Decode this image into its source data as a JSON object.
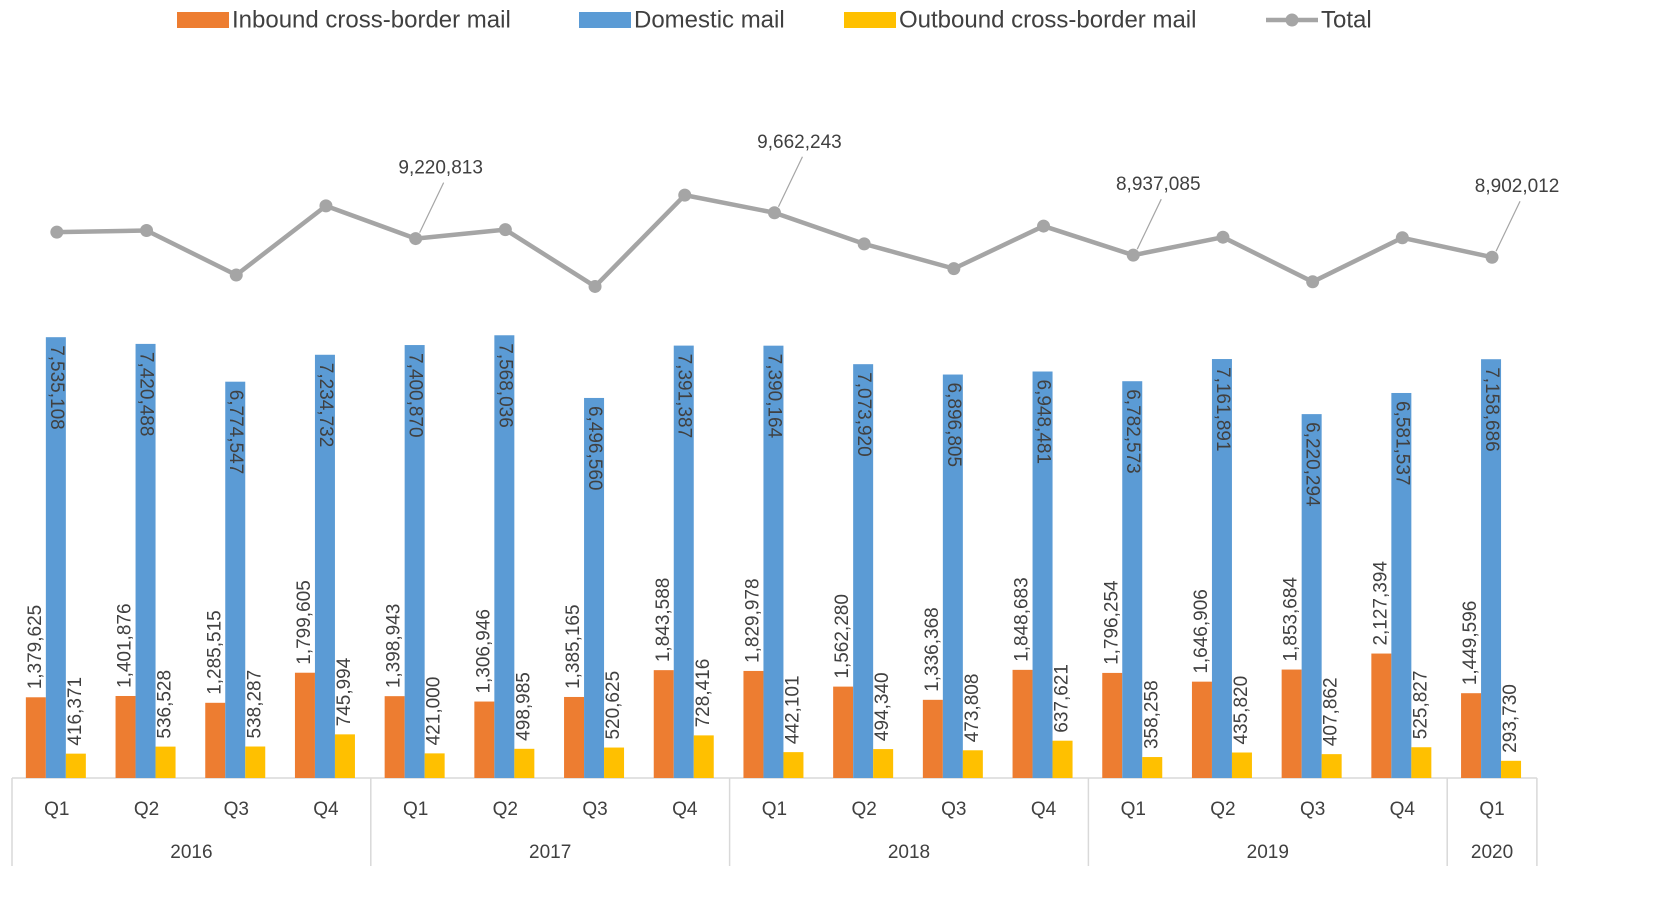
{
  "chart_data": {
    "type": "bar",
    "category_groups": [
      {
        "label": "2016",
        "categories": [
          "Q1",
          "Q2",
          "Q3",
          "Q4"
        ]
      },
      {
        "label": "2017",
        "categories": [
          "Q1",
          "Q2",
          "Q3",
          "Q4"
        ]
      },
      {
        "label": "2018",
        "categories": [
          "Q1",
          "Q2",
          "Q3",
          "Q4"
        ]
      },
      {
        "label": "2019",
        "categories": [
          "Q1",
          "Q2",
          "Q3",
          "Q4"
        ]
      },
      {
        "label": "2020",
        "categories": [
          "Q1"
        ]
      }
    ],
    "ylim": [
      0,
      12000000
    ],
    "series": [
      {
        "name": "Inbound cross-border mail",
        "type": "bar",
        "color": "#ed7d31",
        "values": [
          1379625,
          1401876,
          1285515,
          1799605,
          1398943,
          1306946,
          1385165,
          1843588,
          1829978,
          1562280,
          1336368,
          1848683,
          1796254,
          1646906,
          1853684,
          2127394,
          1449596
        ],
        "value_labels": [
          "1,379,625",
          "1,401,876",
          "1,285,515",
          "1,799,605",
          "1,398,943",
          "1,306,946",
          "1,385,165",
          "1,843,588",
          "1,829,978",
          "1,562,280",
          "1,336,368",
          "1,848,683",
          "1,796,254",
          "1,646,906",
          "1,853,684",
          "2,127,394",
          "1,449,596"
        ]
      },
      {
        "name": "Domestic mail",
        "type": "bar",
        "color": "#5b9bd5",
        "values": [
          7535108,
          7420488,
          6774547,
          7234732,
          7400870,
          7568036,
          6496560,
          7391387,
          7390164,
          7073920,
          6896805,
          6948481,
          6782573,
          7161891,
          6220294,
          6581537,
          7158686
        ],
        "value_labels": [
          "7,535,108",
          "7,420,488",
          "6,774,547",
          "7,234,732",
          "7,400,870",
          "7,568,036",
          "6,496,560",
          "7,391,387",
          "7,390,164",
          "7,073,920",
          "6,896,805",
          "6,948,481",
          "6,782,573",
          "7,161,891",
          "6,220,294",
          "6,581,537",
          "7,158,686"
        ]
      },
      {
        "name": "Outbound cross-border mail",
        "type": "bar",
        "color": "#ffc000",
        "values": [
          416371,
          536528,
          538287,
          745994,
          421000,
          498985,
          520625,
          728416,
          442101,
          494340,
          473808,
          637621,
          358258,
          435820,
          407862,
          525827,
          293730
        ],
        "value_labels": [
          "416,371",
          "536,528",
          "538,287",
          "745,994",
          "421,000",
          "498,985",
          "520,625",
          "728,416",
          "442,101",
          "494,340",
          "473,808",
          "637,621",
          "358,258",
          "435,820",
          "407,862",
          "525,827",
          "293,730"
        ]
      },
      {
        "name": "Total",
        "type": "line",
        "color": "#a5a5a5",
        "values": [
          9331104,
          9358892,
          8598349,
          9780331,
          9220813,
          9373967,
          8402350,
          9963391,
          9662243,
          9130540,
          8706981,
          9434785,
          8937085,
          9244617,
          8481840,
          9234758,
          8902012
        ],
        "value_labels": [
          null,
          null,
          null,
          null,
          "9,220,813",
          null,
          null,
          null,
          "9,662,243",
          null,
          null,
          null,
          "8,937,085",
          null,
          null,
          null,
          "8,902,012"
        ]
      }
    ]
  }
}
